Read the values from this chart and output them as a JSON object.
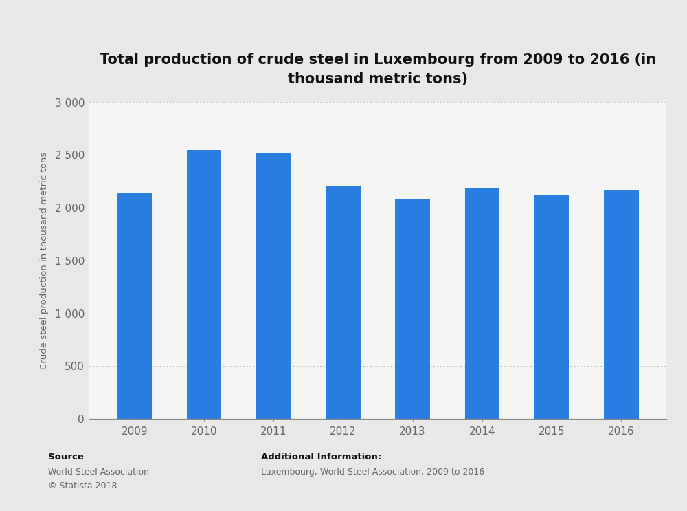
{
  "title": "Total production of crude steel in Luxembourg from 2009 to 2016 (in\nthousand metric tons)",
  "ylabel": "Crude steel production in thousand metric tons",
  "categories": [
    "2009",
    "2010",
    "2011",
    "2012",
    "2013",
    "2014",
    "2015",
    "2016"
  ],
  "values": [
    2140,
    2545,
    2520,
    2210,
    2080,
    2190,
    2120,
    2170
  ],
  "bar_color": "#2a7de1",
  "fig_bg_color": "#e8e8e8",
  "plot_bg_color": "#f5f5f5",
  "ylim": [
    0,
    3000
  ],
  "yticks": [
    0,
    500,
    1000,
    1500,
    2000,
    2500,
    3000
  ],
  "ytick_labels": [
    "0",
    "500",
    "1 000",
    "1 500",
    "2 000",
    "2 500",
    "3 000"
  ],
  "title_fontsize": 15,
  "axis_label_fontsize": 9.5,
  "tick_fontsize": 11,
  "source_label": "Source",
  "source_body": "World Steel Association\n© Statista 2018",
  "additional_label": "Additional Information:",
  "additional_body": "Luxembourg; World Steel Association; 2009 to 2016"
}
